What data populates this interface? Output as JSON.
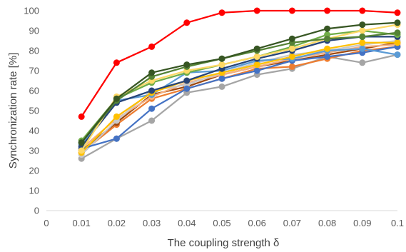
{
  "chart_data": {
    "type": "line",
    "title": "",
    "xlabel": "The coupling strength δ",
    "ylabel": "Synchronization rate [%]",
    "x_ticks": [
      "0",
      "0.01",
      "0.02",
      "0.03",
      "0.04",
      "0.05",
      "0.06",
      "0.07",
      "0.08",
      "0.09",
      "0.1"
    ],
    "y_ticks": [
      "0",
      "10",
      "20",
      "30",
      "40",
      "50",
      "60",
      "70",
      "80",
      "90",
      "100"
    ],
    "xlim": [
      0,
      0.1
    ],
    "ylim": [
      0,
      100
    ],
    "grid": false,
    "legend": "none",
    "x": [
      0.01,
      0.02,
      0.03,
      0.04,
      0.05,
      0.06,
      0.07,
      0.08,
      0.09,
      0.1
    ],
    "series": [
      {
        "color": "#a5a5a5",
        "values": [
          26,
          36,
          45,
          59,
          62,
          68,
          71,
          77,
          74,
          78
        ]
      },
      {
        "color": "#ed7d31",
        "values": [
          29,
          43,
          56,
          61,
          66,
          71,
          72,
          76,
          80,
          82
        ]
      },
      {
        "color": "#9e480e",
        "values": [
          30,
          44,
          58,
          62,
          68,
          72,
          75,
          78,
          81,
          84
        ]
      },
      {
        "color": "#f4b183",
        "values": [
          31,
          46,
          57,
          64,
          68,
          72,
          76,
          79,
          82,
          83
        ]
      },
      {
        "color": "#c9c9c9",
        "values": [
          28,
          45,
          60,
          63,
          69,
          74,
          78,
          80,
          83,
          85
        ]
      },
      {
        "color": "#4472c4",
        "values": [
          31,
          36,
          51,
          61,
          66,
          70,
          75,
          77,
          79,
          82
        ]
      },
      {
        "color": "#5b9bd5",
        "values": [
          33,
          55,
          58,
          69,
          70,
          75,
          76,
          80,
          81,
          78
        ]
      },
      {
        "color": "#ffc000",
        "values": [
          29,
          47,
          59,
          65,
          69,
          73,
          77,
          81,
          84,
          84
        ]
      },
      {
        "color": "#264478",
        "values": [
          32,
          54,
          60,
          65,
          71,
          76,
          80,
          85,
          87,
          87
        ]
      },
      {
        "color": "#70ad47",
        "values": [
          35,
          56,
          64,
          69,
          73,
          77,
          82,
          88,
          90,
          88
        ]
      },
      {
        "color": "#ffd966",
        "values": [
          30,
          57,
          65,
          70,
          73,
          77,
          81,
          86,
          90,
          93
        ]
      },
      {
        "color": "#548235",
        "values": [
          34,
          55,
          67,
          72,
          76,
          80,
          84,
          86,
          87,
          89
        ]
      },
      {
        "color": "#375623",
        "values": [
          34,
          56,
          69,
          73,
          76,
          81,
          86,
          91,
          93,
          94
        ]
      },
      {
        "color": "#ff0000",
        "values": [
          47,
          74,
          82,
          94,
          99,
          100,
          100,
          100,
          100,
          99
        ]
      }
    ]
  }
}
